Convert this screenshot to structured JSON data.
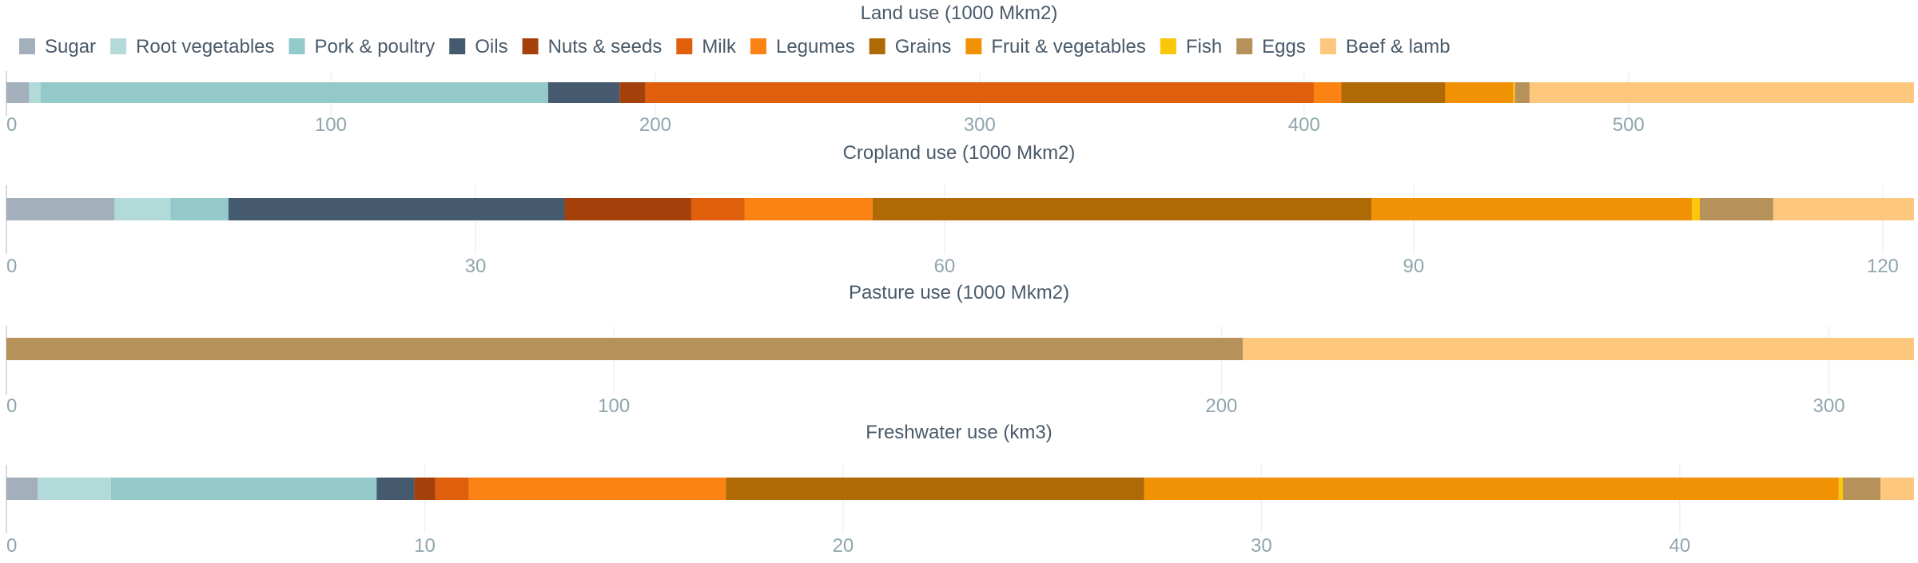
{
  "legend": [
    {
      "name": "Sugar",
      "color": "#a3afbb"
    },
    {
      "name": "Root vegetables",
      "color": "#b2dad8"
    },
    {
      "name": "Pork & poultry",
      "color": "#93c9c8"
    },
    {
      "name": "Oils",
      "color": "#455a6f"
    },
    {
      "name": "Nuts & seeds",
      "color": "#a4410b"
    },
    {
      "name": "Milk",
      "color": "#e05f0d"
    },
    {
      "name": "Legumes",
      "color": "#fb8314"
    },
    {
      "name": "Grains",
      "color": "#b06a05"
    },
    {
      "name": "Fruit & vegetables",
      "color": "#f19104"
    },
    {
      "name": "Fish",
      "color": "#fbc708"
    },
    {
      "name": "Eggs",
      "color": "#b7915a"
    },
    {
      "name": "Beef & lamb",
      "color": "#fdc87e"
    }
  ],
  "chart_data": [
    {
      "type": "bar",
      "orientation": "horizontal-stacked",
      "title": "Land use (1000 Mkm2)",
      "xlim": [
        0,
        588
      ],
      "ticks": [
        0,
        100,
        200,
        300,
        400,
        500
      ],
      "categories": [
        "Sugar",
        "Root vegetables",
        "Pork & poultry",
        "Oils",
        "Nuts & seeds",
        "Milk",
        "Legumes",
        "Grains",
        "Fruit & vegetables",
        "Fish",
        "Eggs",
        "Beef & lamb"
      ],
      "values": [
        7,
        3.5,
        156.5,
        22,
        8,
        206,
        8.5,
        32,
        21,
        0.5,
        4.5,
        118.5
      ]
    },
    {
      "type": "bar",
      "orientation": "horizontal-stacked",
      "title": "Cropland use (1000 Mkm2)",
      "xlim": [
        0,
        122
      ],
      "ticks": [
        0,
        30,
        60,
        90,
        120
      ],
      "categories": [
        "Sugar",
        "Root vegetables",
        "Pork & poultry",
        "Oils",
        "Nuts & seeds",
        "Milk",
        "Legumes",
        "Grains",
        "Fruit & vegetables",
        "Fish",
        "Eggs",
        "Beef & lamb"
      ],
      "values": [
        6.9,
        3.6,
        3.7,
        21.5,
        8.1,
        3.4,
        8.2,
        31.9,
        20.5,
        0.5,
        4.7,
        9
      ]
    },
    {
      "type": "bar",
      "orientation": "horizontal-stacked",
      "title": "Pasture use (1000 Mkm2)",
      "xlim": [
        0,
        314
      ],
      "ticks": [
        0,
        100,
        200,
        300
      ],
      "categories": [
        "Eggs",
        "Beef & lamb"
      ],
      "values": [
        203.5,
        110.5
      ]
    },
    {
      "type": "bar",
      "orientation": "horizontal-stacked",
      "title": "Freshwater use (km3)",
      "xlim": [
        0,
        45.6
      ],
      "ticks": [
        0,
        10,
        20,
        30,
        40
      ],
      "categories": [
        "Sugar",
        "Root vegetables",
        "Pork & poultry",
        "Oils",
        "Nuts & seeds",
        "Milk",
        "Legumes",
        "Grains",
        "Fruit & vegetables",
        "Fish",
        "Eggs",
        "Beef & lamb"
      ],
      "values": [
        0.75,
        1.75,
        6.35,
        0.9,
        0.5,
        0.8,
        6.15,
        10,
        16.6,
        0.1,
        0.9,
        0.8
      ]
    }
  ]
}
